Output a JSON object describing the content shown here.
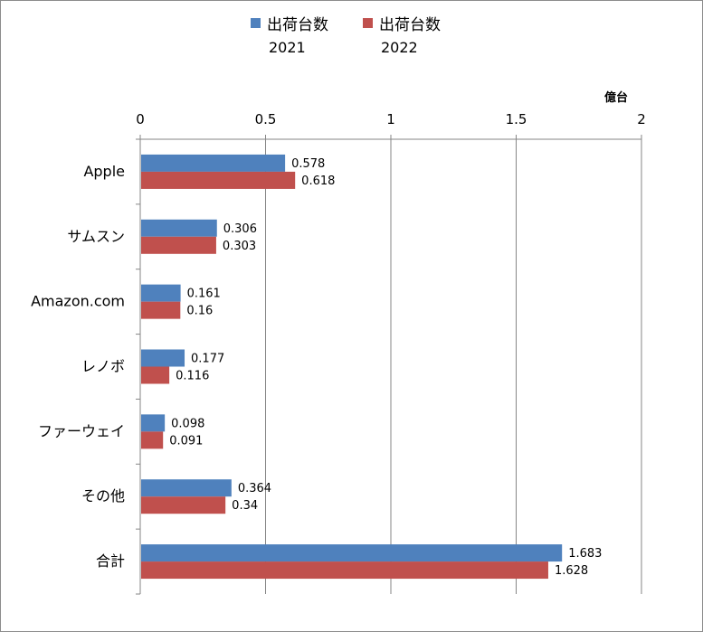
{
  "chart_data": {
    "type": "bar",
    "orientation": "horizontal",
    "unit": "億台",
    "categories": [
      "Apple",
      "サムスン",
      "Amazon.com",
      "レノボ",
      "ファーウェイ",
      "その他",
      "合計"
    ],
    "series": [
      {
        "name": "出荷台数",
        "year": "2021",
        "color": "#4f81bd",
        "values": [
          0.578,
          0.306,
          0.161,
          0.177,
          0.098,
          0.364,
          1.683
        ]
      },
      {
        "name": "出荷台数",
        "year": "2022",
        "color": "#c0504d",
        "values": [
          0.618,
          0.303,
          0.16,
          0.116,
          0.091,
          0.34,
          1.628
        ]
      }
    ],
    "value_labels": [
      [
        "0.578",
        "0.306",
        "0.161",
        "0.177",
        "0.098",
        "0.364",
        "1.683"
      ],
      [
        "0.618",
        "0.303",
        "0.16",
        "0.116",
        "0.091",
        "0.34",
        "1.628"
      ]
    ],
    "xlim": [
      0,
      2
    ],
    "xticks": [
      "0",
      "0.5",
      "1",
      "1.5",
      "2"
    ],
    "x_axis_position": "top",
    "grid": true,
    "legend_position": "top"
  }
}
